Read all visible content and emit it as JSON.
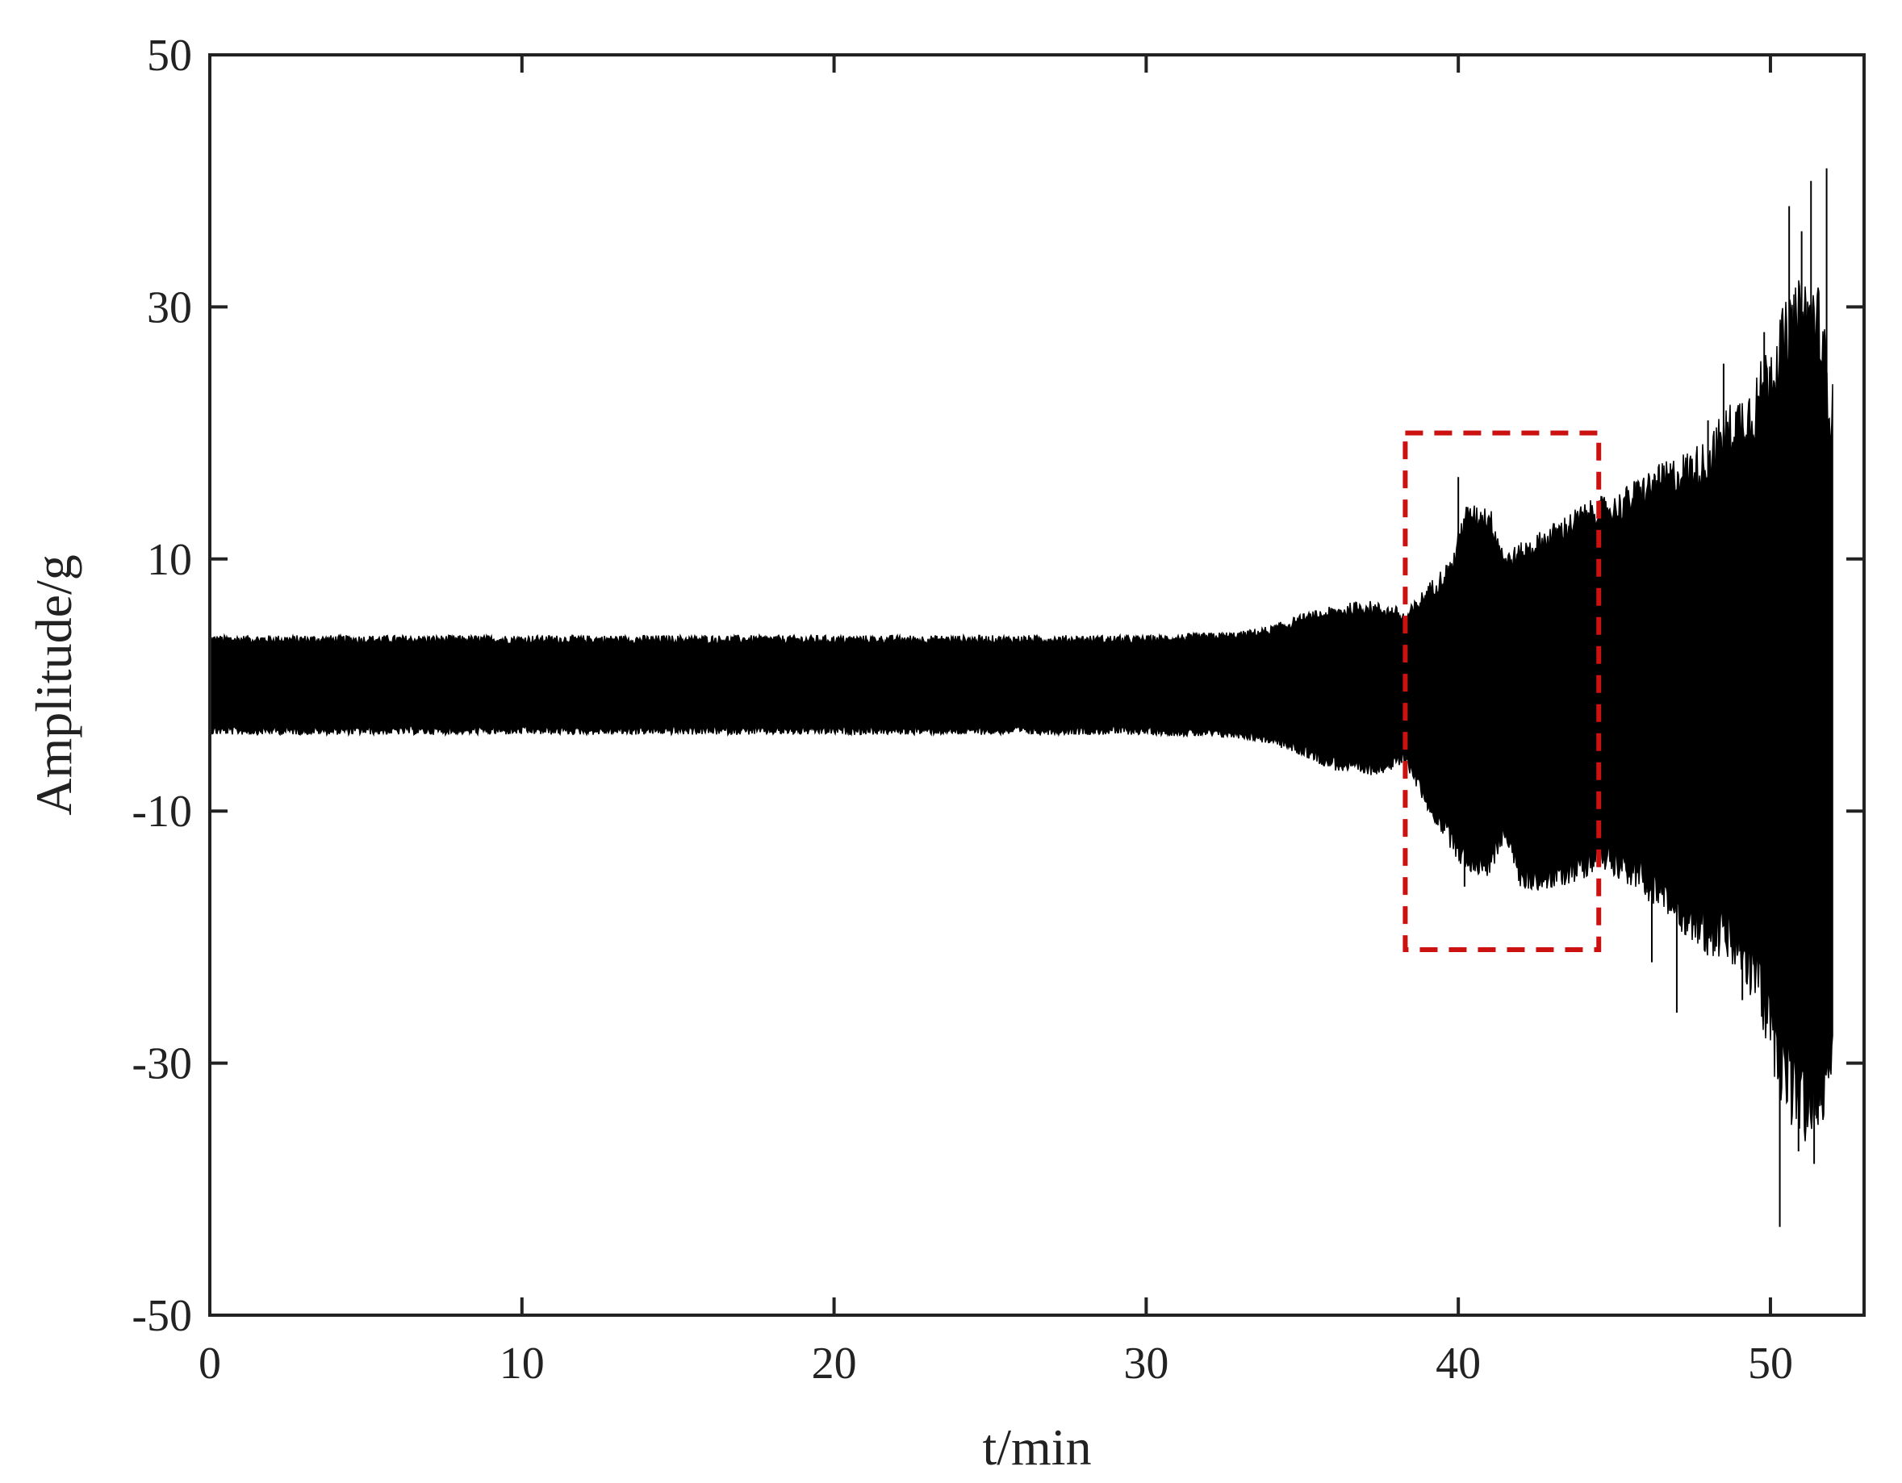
{
  "chart_data": {
    "type": "line",
    "xlabel": "t/min",
    "ylabel": "Amplitude/g",
    "xlim": [
      0,
      53
    ],
    "ylim": [
      -50,
      50
    ],
    "xticks": [
      0,
      10,
      20,
      30,
      40,
      50
    ],
    "yticks": [
      -50,
      -30,
      -10,
      10,
      30,
      50
    ],
    "grid": false,
    "series": [
      {
        "color": "#000000",
        "x_range": [
          0,
          52
        ],
        "envelope": {
          "t": [
            0,
            5,
            10,
            15,
            20,
            25,
            30,
            33,
            34,
            35,
            36,
            37,
            38,
            38.3,
            39,
            39.8,
            40.2,
            41,
            41.5,
            42,
            43,
            44,
            44.5,
            45,
            46,
            47,
            48,
            48.5,
            49,
            49.5,
            50,
            50.5,
            51,
            51.5,
            52
          ],
          "upper": [
            3.5,
            3.5,
            3.5,
            3.5,
            3.5,
            3.5,
            3.5,
            3.8,
            4.2,
            5,
            5.5,
            6,
            5.5,
            5,
            7,
            9,
            13,
            13,
            9.5,
            10,
            11.5,
            13,
            13.5,
            13.5,
            15,
            16,
            17,
            19,
            20,
            21,
            24,
            26,
            28,
            28,
            20
          ],
          "lower": [
            -3.5,
            -3.5,
            -3.5,
            -3.5,
            -3.5,
            -3.5,
            -3.5,
            -3.8,
            -4.2,
            -5,
            -6,
            -6.5,
            -6,
            -5.5,
            -9,
            -12,
            -13.5,
            -14,
            -11,
            -15,
            -15,
            -14,
            -13,
            -13.5,
            -15,
            -17,
            -19,
            -19,
            -20,
            -22,
            -26,
            -30,
            -32,
            -32,
            -28
          ],
          "noise": [
            0.7,
            0.7,
            0.7,
            0.7,
            0.7,
            0.7,
            0.7,
            0.7,
            0.8,
            1,
            1.2,
            1.2,
            1.2,
            1.2,
            1.5,
            1.8,
            2,
            2,
            1.8,
            2,
            2,
            2.2,
            2.2,
            2.5,
            3,
            3.5,
            4,
            4.5,
            5,
            5.5,
            6,
            7,
            7,
            7,
            6
          ]
        },
        "spikes": [
          {
            "x": 40.0,
            "y": 16.5
          },
          {
            "x": 40.2,
            "y": -16
          },
          {
            "x": 47.0,
            "y": -26
          },
          {
            "x": 48.5,
            "y": 25.5
          },
          {
            "x": 49.1,
            "y": -25
          },
          {
            "x": 50.3,
            "y": -43
          },
          {
            "x": 50.6,
            "y": 38
          },
          {
            "x": 50.9,
            "y": -37
          },
          {
            "x": 51.3,
            "y": 40
          },
          {
            "x": 51.4,
            "y": -38
          },
          {
            "x": 51.8,
            "y": 41
          },
          {
            "x": 51.0,
            "y": 36
          },
          {
            "x": 49.8,
            "y": 28
          },
          {
            "x": 48.0,
            "y": 21
          },
          {
            "x": 46.2,
            "y": -22
          }
        ]
      }
    ],
    "annotations": [
      {
        "type": "dashed-rectangle",
        "color": "#cc1111",
        "x0": 38.3,
        "x1": 44.5,
        "y0": -21,
        "y1": 20
      }
    ]
  }
}
